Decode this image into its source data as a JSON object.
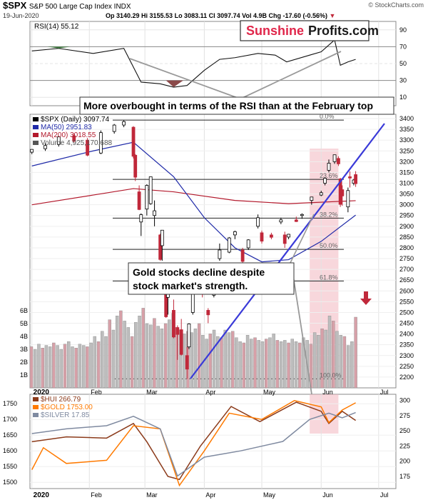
{
  "header": {
    "symbol": "$SPX",
    "name": "S&P 500 Large Cap Index  INDX",
    "date": "19-Jun-2020",
    "quote": "Op 3140.29  Hi 3155.53  Lo 3083.11  Cl 3097.74  Vol 4.9B  Chg -17.60 (-0.56%)",
    "quote_arrow": "▼",
    "credit": "© StockCharts.com"
  },
  "brand": {
    "part1": "Sunshine",
    "part2": "Profits.com",
    "color1": "#e0264a",
    "color2": "#1a1a1a"
  },
  "colors": {
    "up": "#000000",
    "down": "#c0283a",
    "ma50": "#1f2aa8",
    "ma200": "#b2182b",
    "trend": "#3a3ad8",
    "highlight": "#f3b6bf",
    "hui": "#8b3a1a",
    "gold": "#ff7a00",
    "silver": "#7f8aa0",
    "rsi_pos": "#3f7a3f",
    "rsi_neg": "#8b4a4a"
  },
  "annotations": {
    "rsi_note": "More overbought in terms of the RSI than at the February top",
    "gold_note_1": "Gold stocks decline despite",
    "gold_note_2": "stock market's strength."
  },
  "chart_data": [
    {
      "type": "line",
      "panel": "rsi",
      "legend": "RSI(14) 55.12",
      "ylim": [
        0,
        100
      ],
      "ticks": [
        10,
        30,
        50,
        70,
        90
      ],
      "levels": [
        30,
        70
      ],
      "x_dates": [
        "2020-01-02",
        "2020-01-16",
        "2020-02-03",
        "2020-02-19",
        "2020-02-28",
        "2020-03-09",
        "2020-03-16",
        "2020-03-23",
        "2020-04-01",
        "2020-04-09",
        "2020-04-17",
        "2020-04-29",
        "2020-05-08",
        "2020-05-14",
        "2020-05-26",
        "2020-06-01",
        "2020-06-08",
        "2020-06-11",
        "2020-06-15",
        "2020-06-19"
      ],
      "values": [
        65,
        68,
        62,
        68,
        28,
        26,
        22,
        24,
        42,
        55,
        57,
        62,
        60,
        52,
        60,
        64,
        78,
        48,
        52,
        55
      ]
    },
    {
      "type": "candlestick",
      "panel": "price",
      "legend": [
        "$SPX (Daily) 3097.74",
        "MA(50) 2951.83",
        "MA(200) 3018.55",
        "Volume 4,925,170,688"
      ],
      "ylim": [
        2150,
        3420
      ],
      "ticks": [
        2200,
        2250,
        2300,
        2350,
        2400,
        2450,
        2500,
        2550,
        2600,
        2650,
        2700,
        2750,
        2800,
        2850,
        2900,
        2950,
        3000,
        3050,
        3100,
        3150,
        3200,
        3250,
        3300,
        3350,
        3400
      ],
      "candles": [
        [
          "2020-01-02",
          3244,
          3258,
          3235,
          3257
        ],
        [
          "2020-01-09",
          3260,
          3285,
          3250,
          3275
        ],
        [
          "2020-01-16",
          3280,
          3320,
          3270,
          3315
        ],
        [
          "2020-01-24",
          3320,
          3330,
          3290,
          3295
        ],
        [
          "2020-01-31",
          3300,
          3310,
          3225,
          3230
        ],
        [
          "2020-02-07",
          3240,
          3345,
          3235,
          3335
        ],
        [
          "2020-02-14",
          3340,
          3375,
          3330,
          3370
        ],
        [
          "2020-02-19",
          3370,
          3393,
          3360,
          3386
        ],
        [
          "2020-02-24",
          3360,
          3365,
          3215,
          3225
        ],
        [
          "2020-02-25",
          3230,
          3235,
          3110,
          3128
        ],
        [
          "2020-02-27",
          3060,
          3090,
          2975,
          2978
        ],
        [
          "2020-02-28",
          2920,
          2960,
          2855,
          2954
        ],
        [
          "2020-03-02",
          2980,
          3095,
          2950,
          3090
        ],
        [
          "2020-03-04",
          3005,
          3130,
          3000,
          3130
        ],
        [
          "2020-03-06",
          2950,
          3020,
          2900,
          2972
        ],
        [
          "2020-03-09",
          2860,
          2865,
          2740,
          2746
        ],
        [
          "2020-03-10",
          2810,
          2880,
          2740,
          2882
        ],
        [
          "2020-03-12",
          2630,
          2660,
          2475,
          2480
        ],
        [
          "2020-03-13",
          2570,
          2712,
          2490,
          2711
        ],
        [
          "2020-03-16",
          2510,
          2560,
          2380,
          2386
        ],
        [
          "2020-03-18",
          2430,
          2440,
          2280,
          2398
        ],
        [
          "2020-03-20",
          2420,
          2470,
          2300,
          2305
        ],
        [
          "2020-03-23",
          2300,
          2340,
          2192,
          2237
        ],
        [
          "2020-03-24",
          2340,
          2450,
          2330,
          2447
        ],
        [
          "2020-03-26",
          2500,
          2640,
          2490,
          2630
        ],
        [
          "2020-03-31",
          2620,
          2640,
          2570,
          2585
        ],
        [
          "2020-04-03",
          2510,
          2520,
          2450,
          2489
        ],
        [
          "2020-04-06",
          2580,
          2680,
          2570,
          2664
        ],
        [
          "2020-04-09",
          2750,
          2820,
          2740,
          2790
        ],
        [
          "2020-04-14",
          2780,
          2850,
          2775,
          2846
        ],
        [
          "2020-04-17",
          2860,
          2880,
          2840,
          2875
        ],
        [
          "2020-04-21",
          2790,
          2800,
          2730,
          2737
        ],
        [
          "2020-04-24",
          2800,
          2840,
          2790,
          2837
        ],
        [
          "2020-04-29",
          2900,
          2955,
          2890,
          2940
        ],
        [
          "2020-05-01",
          2870,
          2880,
          2820,
          2831
        ],
        [
          "2020-05-06",
          2860,
          2870,
          2840,
          2849
        ],
        [
          "2020-05-11",
          2920,
          2940,
          2910,
          2930
        ],
        [
          "2020-05-13",
          2860,
          2875,
          2800,
          2820
        ],
        [
          "2020-05-15",
          2850,
          2865,
          2840,
          2863
        ],
        [
          "2020-05-19",
          2930,
          2945,
          2920,
          2922
        ],
        [
          "2020-05-22",
          2950,
          2960,
          2935,
          2955
        ],
        [
          "2020-05-27",
          3020,
          3037,
          3000,
          3036
        ],
        [
          "2020-06-01",
          3045,
          3065,
          3040,
          3056
        ],
        [
          "2020-06-03",
          3100,
          3125,
          3090,
          3123
        ],
        [
          "2020-06-05",
          3160,
          3210,
          3150,
          3193
        ],
        [
          "2020-06-08",
          3200,
          3232,
          3190,
          3232
        ],
        [
          "2020-06-10",
          3215,
          3225,
          3180,
          3190
        ],
        [
          "2020-06-11",
          3120,
          3125,
          2990,
          3002
        ],
        [
          "2020-06-12",
          3070,
          3090,
          2995,
          3041
        ],
        [
          "2020-06-15",
          2990,
          3080,
          2965,
          3066
        ],
        [
          "2020-06-16",
          3130,
          3155,
          3080,
          3124
        ],
        [
          "2020-06-18",
          3100,
          3120,
          3090,
          3115
        ],
        [
          "2020-06-19",
          3140,
          3156,
          3083,
          3098
        ]
      ],
      "ma50": [
        [
          "2020-01-02",
          3180
        ],
        [
          "2020-02-03",
          3250
        ],
        [
          "2020-02-24",
          3290
        ],
        [
          "2020-03-16",
          3130
        ],
        [
          "2020-04-01",
          2940
        ],
        [
          "2020-04-17",
          2800
        ],
        [
          "2020-05-01",
          2735
        ],
        [
          "2020-05-15",
          2745
        ],
        [
          "2020-06-01",
          2830
        ],
        [
          "2020-06-19",
          2952
        ]
      ],
      "ma200": [
        [
          "2020-01-02",
          3000
        ],
        [
          "2020-02-03",
          3045
        ],
        [
          "2020-02-24",
          3075
        ],
        [
          "2020-03-16",
          3060
        ],
        [
          "2020-04-17",
          3020
        ],
        [
          "2020-05-15",
          3005
        ],
        [
          "2020-06-19",
          3019
        ]
      ],
      "fib_levels": [
        {
          "label": "0.0%",
          "value": 3393
        },
        {
          "label": "23.6%",
          "value": 3118
        },
        {
          "label": "38.2%",
          "value": 2938
        },
        {
          "label": "50.0%",
          "value": 2793
        },
        {
          "label": "61.8%",
          "value": 2646
        },
        {
          "label": "100.0%",
          "value": 2192
        }
      ],
      "volume_ticks": [
        "1B",
        "2B",
        "3B",
        "4B",
        "5B",
        "6B"
      ],
      "volume_billions": [
        3.2,
        3.0,
        3.4,
        3.1,
        3.3,
        3.2,
        3.5,
        3.3,
        3.0,
        3.4,
        3.6,
        3.2,
        3.1,
        3.4,
        3.3,
        3.2,
        3.5,
        4.0,
        3.6,
        4.4,
        4.0,
        5.3,
        4.5,
        5.6,
        6.0,
        5.2,
        4.7,
        4.0,
        5.1,
        5.6,
        6.2,
        5.0,
        4.9,
        5.4,
        4.8,
        4.6,
        5.0,
        5.3,
        5.8,
        4.7,
        4.5,
        4.2,
        4.4,
        4.3,
        4.6,
        5.0,
        4.1,
        3.8,
        4.2,
        4.5,
        4.0,
        3.9,
        4.5,
        4.3,
        4.4,
        3.9,
        3.6,
        3.5,
        4.1,
        3.8,
        3.9,
        3.7,
        3.6,
        3.8,
        3.9,
        4.2,
        3.7,
        3.6,
        3.7,
        3.5,
        3.8,
        3.6,
        3.5,
        3.9,
        3.7,
        3.4,
        4.3,
        4.1,
        4.6,
        4.5,
        5.6,
        5.2,
        4.4,
        4.1,
        4.0,
        3.3,
        3.6,
        5.5
      ],
      "x_ticks": [
        "2020",
        "Feb",
        "Mar",
        "Apr",
        "May",
        "Jun",
        "Jul"
      ]
    },
    {
      "type": "line",
      "panel": "metals",
      "series": [
        {
          "name": "$HUI 266.79",
          "axis": "right",
          "values": [
            [
              "2020-01-02",
              232
            ],
            [
              "2020-01-20",
              240
            ],
            [
              "2020-02-10",
              238
            ],
            [
              "2020-02-24",
              262
            ],
            [
              "2020-03-02",
              232
            ],
            [
              "2020-03-13",
              175
            ],
            [
              "2020-03-19",
              170
            ],
            [
              "2020-03-30",
              225
            ],
            [
              "2020-04-15",
              290
            ],
            [
              "2020-04-30",
              265
            ],
            [
              "2020-05-19",
              297
            ],
            [
              "2020-06-01",
              282
            ],
            [
              "2020-06-05",
              262
            ],
            [
              "2020-06-12",
              282
            ],
            [
              "2020-06-19",
              267
            ]
          ]
        },
        {
          "name": "$GOLD 1753.00",
          "axis": "left",
          "values": [
            [
              "2020-01-02",
              1540
            ],
            [
              "2020-01-08",
              1610
            ],
            [
              "2020-01-20",
              1560
            ],
            [
              "2020-02-10",
              1570
            ],
            [
              "2020-02-24",
              1680
            ],
            [
              "2020-03-09",
              1670
            ],
            [
              "2020-03-19",
              1490
            ],
            [
              "2020-04-01",
              1600
            ],
            [
              "2020-04-14",
              1720
            ],
            [
              "2020-05-01",
              1700
            ],
            [
              "2020-05-18",
              1760
            ],
            [
              "2020-06-01",
              1740
            ],
            [
              "2020-06-05",
              1690
            ],
            [
              "2020-06-12",
              1730
            ],
            [
              "2020-06-19",
              1753
            ]
          ]
        },
        {
          "name": "$SILVER 17.85",
          "axis": "none",
          "values": [
            [
              "2020-01-02",
              1655
            ],
            [
              "2020-01-20",
              1670
            ],
            [
              "2020-02-10",
              1680
            ],
            [
              "2020-02-24",
              1710
            ],
            [
              "2020-03-09",
              1670
            ],
            [
              "2020-03-18",
              1520
            ],
            [
              "2020-04-01",
              1580
            ],
            [
              "2020-04-20",
              1600
            ],
            [
              "2020-05-12",
              1630
            ],
            [
              "2020-05-26",
              1700
            ],
            [
              "2020-06-05",
              1720
            ],
            [
              "2020-06-12",
              1705
            ],
            [
              "2020-06-19",
              1722
            ]
          ]
        }
      ],
      "ylim_left": [
        1480,
        1780
      ],
      "ticks_left": [
        1500,
        1550,
        1600,
        1650,
        1700,
        1750
      ],
      "ylim_right": [
        155,
        310
      ],
      "ticks_right": [
        175,
        200,
        225,
        250,
        275,
        300
      ],
      "x_ticks": [
        "2020",
        "Feb",
        "Mar",
        "Apr",
        "May",
        "Jun",
        "Jul"
      ]
    }
  ]
}
